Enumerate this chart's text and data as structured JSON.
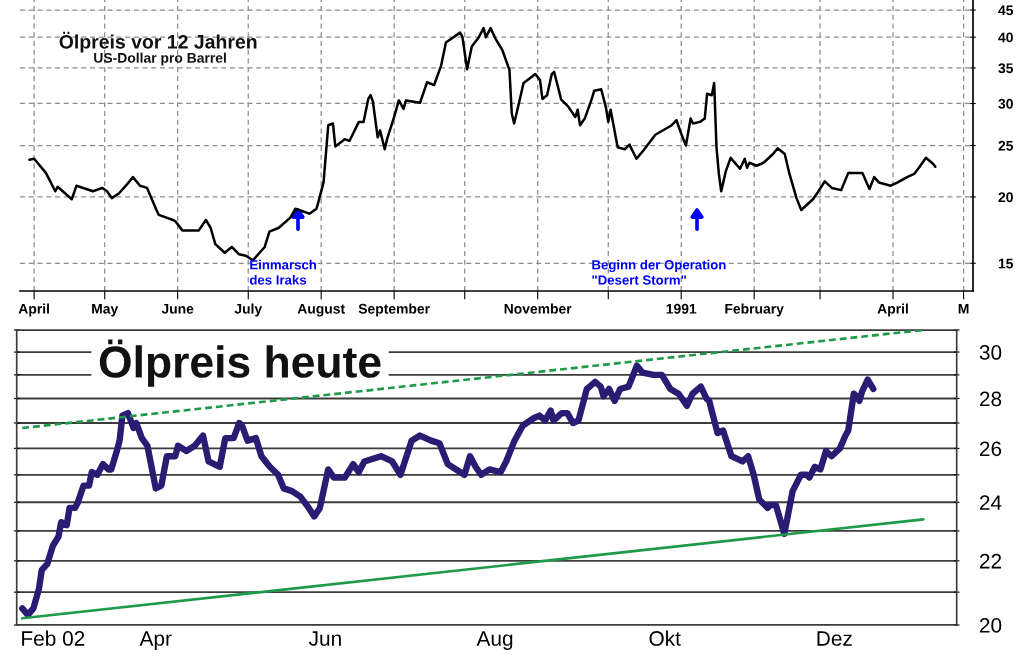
{
  "chart_data": [
    {
      "type": "line",
      "title": "Ölpreis vor 12 Jahren",
      "subtitle": "US-Dollar pro Barrel",
      "color": "#000000",
      "x": [
        "1990-03-30",
        "1990-04-01",
        "1990-04-06",
        "1990-04-10",
        "1990-04-11",
        "1990-04-17",
        "1990-04-19",
        "1990-04-26",
        "1990-04-30",
        "1990-05-02",
        "1990-05-04",
        "1990-05-07",
        "1990-05-10",
        "1990-05-13",
        "1990-05-16",
        "1990-05-19",
        "1990-05-23",
        "1990-05-24",
        "1990-05-30",
        "1990-05-31",
        "1990-06-03",
        "1990-06-10",
        "1990-06-13",
        "1990-06-15",
        "1990-06-17",
        "1990-06-21",
        "1990-06-24",
        "1990-06-27",
        "1990-06-30",
        "1990-07-03",
        "1990-07-08",
        "1990-07-10",
        "1990-07-14",
        "1990-07-19",
        "1990-07-21",
        "1990-07-27",
        "1990-07-30",
        "1990-07-31",
        "1990-08-02",
        "1990-08-03",
        "1990-08-04",
        "1990-08-06",
        "1990-08-07",
        "1990-08-11",
        "1990-08-13",
        "1990-08-17",
        "1990-08-19",
        "1990-08-21",
        "1990-08-22",
        "1990-08-23",
        "1990-08-25",
        "1990-08-26",
        "1990-08-28",
        "1990-08-29",
        "1990-09-01",
        "1990-09-03",
        "1990-09-05",
        "1990-09-06",
        "1990-09-12",
        "1990-09-15",
        "1990-09-18",
        "1990-09-21",
        "1990-09-23",
        "1990-09-29",
        "1990-09-30",
        "1990-10-02",
        "1990-10-04",
        "1990-10-07",
        "1990-10-09",
        "1990-10-10",
        "1990-10-12",
        "1990-10-14",
        "1990-10-17",
        "1990-10-20",
        "1990-10-21",
        "1990-10-22",
        "1990-10-24",
        "1990-10-26",
        "1990-10-28",
        "1990-10-31",
        "1990-11-02",
        "1990-11-03",
        "1990-11-05",
        "1990-11-07",
        "1990-11-08",
        "1990-11-11",
        "1990-11-14",
        "1990-11-17",
        "1990-11-18",
        "1990-11-19",
        "1990-11-21",
        "1990-11-24",
        "1990-11-25",
        "1990-11-28",
        "1990-11-30",
        "1990-12-01",
        "1990-12-02",
        "1990-12-05",
        "1990-12-08",
        "1990-12-10",
        "1990-12-13",
        "1990-12-16",
        "1990-12-21",
        "1990-12-28",
        "1990-12-30",
        "1991-01-01",
        "1991-01-03",
        "1991-01-05",
        "1991-01-06",
        "1991-01-09",
        "1991-01-11",
        "1991-01-12",
        "1991-01-14",
        "1991-01-15",
        "1991-01-16",
        "1991-01-17",
        "1991-01-18",
        "1991-01-20",
        "1991-01-22",
        "1991-01-26",
        "1991-01-28",
        "1991-01-29",
        "1991-01-30",
        "1991-02-02",
        "1991-02-05",
        "1991-02-09",
        "1991-02-11",
        "1991-02-14",
        "1991-02-16",
        "1991-02-19",
        "1991-02-21",
        "1991-02-26",
        "1991-02-28",
        "1991-03-03",
        "1991-03-06",
        "1991-03-10",
        "1991-03-13",
        "1991-03-19",
        "1991-03-22",
        "1991-03-24",
        "1991-03-26",
        "1991-03-31",
        "1991-04-03",
        "1991-04-07",
        "1991-04-10",
        "1991-04-12",
        "1991-04-15",
        "1991-04-18",
        "1991-04-19"
      ],
      "values": [
        23.5,
        23.6,
        22.2,
        20.5,
        20.9,
        19.8,
        21.0,
        20.5,
        20.8,
        20.5,
        19.9,
        20.3,
        21.0,
        21.8,
        21.0,
        20.8,
        18.9,
        18.5,
        18.1,
        18.0,
        17.3,
        17.3,
        18.1,
        17.5,
        16.3,
        15.7,
        16.1,
        15.6,
        15.5,
        15.2,
        16.1,
        17.2,
        17.5,
        18.3,
        19.0,
        18.6,
        19.0,
        19.7,
        21.3,
        24.1,
        27.3,
        27.5,
        24.9,
        25.7,
        25.5,
        27.7,
        27.7,
        30.6,
        31.1,
        30.2,
        25.9,
        26.7,
        24.6,
        25.7,
        28.3,
        30.4,
        29.3,
        30.4,
        30.1,
        32.9,
        32.5,
        35.4,
        39.1,
        40.8,
        40.1,
        34.8,
        38.4,
        40.0,
        41.6,
        40.0,
        41.6,
        39.8,
        37.8,
        34.7,
        28.7,
        27.5,
        30.0,
        32.8,
        33.3,
        34.1,
        33.2,
        30.6,
        31.1,
        34.1,
        34.4,
        30.5,
        29.6,
        28.3,
        29.2,
        27.3,
        28.1,
        30.6,
        31.7,
        31.9,
        29.5,
        27.7,
        29.2,
        24.8,
        24.6,
        25.1,
        23.6,
        24.5,
        26.2,
        27.3,
        27.9,
        26.3,
        25.0,
        28.1,
        27.5,
        27.7,
        28.1,
        31.3,
        31.1,
        32.8,
        24.8,
        22.1,
        20.5,
        22.4,
        23.7,
        22.6,
        23.6,
        22.7,
        23.2,
        22.9,
        23.2,
        24.1,
        24.7,
        24.1,
        22.1,
        19.9,
        18.9,
        19.8,
        20.4,
        21.4,
        20.8,
        20.6,
        22.2,
        22.2,
        20.7,
        21.8,
        21.3,
        21.0,
        21.3,
        21.8,
        22.1,
        22.7,
        23.7,
        23.1,
        22.8
      ],
      "xlim": [
        "1990-03-26",
        "1991-05-05"
      ],
      "xticks": [
        {
          "value": "1990-04-01",
          "label": "April"
        },
        {
          "value": "1990-05-01",
          "label": "May"
        },
        {
          "value": "1990-06-01",
          "label": "June"
        },
        {
          "value": "1990-07-01",
          "label": "July"
        },
        {
          "value": "1990-08-01",
          "label": "August"
        },
        {
          "value": "1990-09-01",
          "label": "September"
        },
        {
          "value": "1990-10-01",
          "label": null
        },
        {
          "value": "1990-11-01",
          "label": "November"
        },
        {
          "value": "1990-12-01",
          "label": null
        },
        {
          "value": "1991-01-01",
          "label": "1991"
        },
        {
          "value": "1991-02-01",
          "label": "February"
        },
        {
          "value": "1991-03-01",
          "label": null
        },
        {
          "value": "1991-04-01",
          "label": "April"
        },
        {
          "value": "1991-05-01",
          "label": "M"
        }
      ],
      "ylim": [
        13.3,
        47
      ],
      "yticks": [
        15,
        20,
        25,
        30,
        35,
        40,
        45
      ],
      "log": true,
      "grid": true,
      "annotations": [
        "Einmarsch\ndes Iraks",
        "Beginn der Operation\n\"Desert Storm\""
      ]
    },
    {
      "type": "line",
      "title": "Ölpreis heute",
      "x": [
        "2002-02-12",
        "2002-02-14",
        "2002-02-16",
        "2002-02-18",
        "2002-02-19",
        "2002-02-21",
        "2002-02-23",
        "2002-02-25",
        "2002-02-26",
        "2002-02-28",
        "2002-03-01",
        "2002-03-03",
        "2002-03-04",
        "2002-03-06",
        "2002-03-08",
        "2002-03-09",
        "2002-03-11",
        "2002-03-13",
        "2002-03-15",
        "2002-03-16",
        "2002-03-18",
        "2002-03-19",
        "2002-03-20",
        "2002-03-22",
        "2002-03-24",
        "2002-03-25",
        "2002-03-27",
        "2002-03-29",
        "2002-04-01",
        "2002-04-03",
        "2002-04-05",
        "2002-04-08",
        "2002-04-09",
        "2002-04-12",
        "2002-04-15",
        "2002-04-18",
        "2002-04-20",
        "2002-04-24",
        "2002-04-26",
        "2002-04-29",
        "2002-05-01",
        "2002-05-02",
        "2002-05-04",
        "2002-05-07",
        "2002-05-09",
        "2002-05-12",
        "2002-05-15",
        "2002-05-17",
        "2002-05-20",
        "2002-05-23",
        "2002-05-26",
        "2002-05-28",
        "2002-05-30",
        "2002-06-02",
        "2002-06-04",
        "2002-06-08",
        "2002-06-11",
        "2002-06-13",
        "2002-06-15",
        "2002-06-21",
        "2002-06-25",
        "2002-06-28",
        "2002-07-02",
        "2002-07-05",
        "2002-07-09",
        "2002-07-12",
        "2002-07-15",
        "2002-07-18",
        "2002-07-21",
        "2002-07-23",
        "2002-07-25",
        "2002-07-27",
        "2002-07-30",
        "2002-08-03",
        "2002-08-05",
        "2002-08-08",
        "2002-08-11",
        "2002-08-15",
        "2002-08-17",
        "2002-08-19",
        "2002-08-21",
        "2002-08-22",
        "2002-08-25",
        "2002-08-27",
        "2002-08-29",
        "2002-08-31",
        "2002-09-03",
        "2002-09-06",
        "2002-09-08",
        "2002-09-09",
        "2002-09-11",
        "2002-09-13",
        "2002-09-15",
        "2002-09-18",
        "2002-09-21",
        "2002-09-23",
        "2002-09-27",
        "2002-09-30",
        "2002-10-03",
        "2002-10-06",
        "2002-10-09",
        "2002-10-11",
        "2002-10-14",
        "2002-10-16",
        "2002-10-17",
        "2002-10-20",
        "2002-10-22",
        "2002-10-25",
        "2002-10-29",
        "2002-10-31",
        "2002-11-02",
        "2002-11-04",
        "2002-11-07",
        "2002-11-08",
        "2002-11-10",
        "2002-11-13",
        "2002-11-16",
        "2002-11-19",
        "2002-11-21",
        "2002-11-22",
        "2002-11-24",
        "2002-11-26",
        "2002-11-28",
        "2002-11-30",
        "2002-12-03",
        "2002-12-05",
        "2002-12-06",
        "2002-12-08",
        "2002-12-09",
        "2002-12-10",
        "2002-12-11",
        "2002-12-13",
        "2002-12-15"
      ],
      "series": [
        {
          "color": "#2a1b73",
          "values": [
            20.5,
            20.3,
            20.5,
            21.1,
            21.7,
            21.9,
            22.5,
            22.8,
            23.3,
            23.2,
            23.8,
            23.8,
            24.0,
            24.6,
            24.6,
            25.1,
            25.0,
            25.4,
            25.2,
            25.2,
            25.9,
            26.3,
            27.3,
            27.4,
            26.8,
            27.0,
            26.4,
            26.1,
            24.5,
            24.6,
            25.7,
            25.7,
            26.1,
            25.9,
            26.1,
            26.5,
            25.5,
            25.3,
            26.4,
            26.4,
            27.0,
            26.9,
            26.3,
            26.4,
            25.7,
            25.3,
            25.0,
            24.5,
            24.4,
            24.2,
            23.8,
            23.5,
            23.8,
            25.2,
            24.9,
            24.9,
            25.4,
            25.1,
            25.5,
            25.7,
            25.5,
            25.0,
            26.3,
            26.5,
            26.3,
            26.2,
            25.4,
            25.2,
            25.0,
            25.7,
            25.3,
            25.0,
            25.2,
            25.1,
            25.5,
            26.3,
            26.9,
            27.2,
            27.3,
            27.1,
            27.5,
            27.1,
            27.4,
            27.4,
            27.0,
            27.1,
            28.4,
            28.7,
            28.5,
            28.1,
            28.4,
            27.9,
            28.4,
            28.5,
            29.4,
            29.1,
            29.0,
            29.0,
            28.4,
            28.2,
            27.7,
            28.2,
            28.5,
            28.0,
            27.9,
            26.6,
            26.7,
            25.7,
            25.5,
            25.7,
            25.0,
            24.1,
            23.8,
            23.9,
            23.9,
            22.9,
            24.4,
            25.0,
            25.0,
            24.9,
            25.3,
            25.2,
            25.9,
            25.7,
            26.0,
            26.5,
            26.7,
            28.2,
            28.1,
            27.9,
            28.3,
            28.8,
            28.4
          ]
        },
        {
          "x": [
            "2002-02-12",
            "2003-01-02"
          ],
          "values": [
            26.8,
            31.0
          ],
          "color": "#1f9a48",
          "line_style": "dashed"
        },
        {
          "x": [
            "2002-02-12",
            "2003-01-02"
          ],
          "values": [
            20.2,
            23.4
          ],
          "color": "#1f9a48"
        }
      ],
      "xlim": [
        "2002-02-10",
        "2003-01-14"
      ],
      "xticks": [
        {
          "value": "2002-02-23",
          "label": "Feb 02"
        },
        {
          "value": "2002-04-01",
          "label": "Apr"
        },
        {
          "value": "2002-06-01",
          "label": "Jun"
        },
        {
          "value": "2002-08-01",
          "label": "Aug"
        },
        {
          "value": "2002-10-01",
          "label": "Okt"
        },
        {
          "value": "2002-12-01",
          "label": "Dez"
        }
      ],
      "ylim": [
        20,
        31
      ],
      "yticks": [
        20,
        {
          "value": 21,
          "label": null
        },
        22,
        {
          "value": 23,
          "label": null
        },
        24,
        {
          "value": 25,
          "label": null
        },
        26,
        {
          "value": 27,
          "label": null
        },
        28,
        {
          "value": 29,
          "label": null
        },
        30,
        {
          "value": 31,
          "label": null
        }
      ],
      "log": true,
      "grid": "y"
    }
  ]
}
